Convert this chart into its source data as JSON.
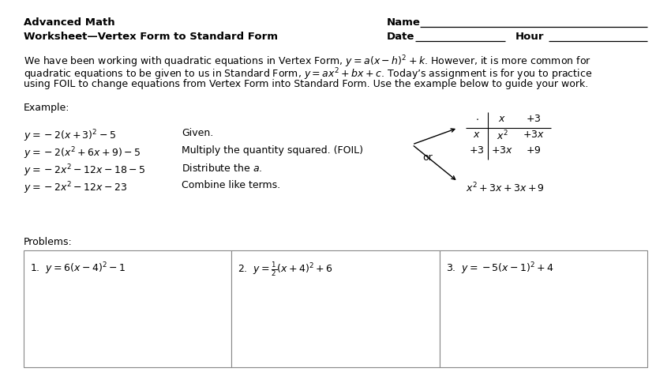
{
  "bg_color": "#ffffff",
  "text_color": "#000000",
  "title_line1": "Advanced Math",
  "title_line2": "Worksheet—Vertex Form to Standard Form",
  "name_label": "Name",
  "date_label": "Date",
  "hour_label": "Hour",
  "para_line1": "We have been working with quadratic equations in Vertex Form, $y = a(x - h)^2 + k$. However, it is more common for",
  "para_line2": "quadratic equations to be given to us in Standard Form, $y = ax^2 + bx + c$. Today’s assignment is for you to practice",
  "para_line3": "using FOIL to change equations from Vertex Form into Standard Form. Use the example below to guide your work.",
  "example_label": "Example:",
  "eq1": "$y = -2(x + 3)^2 - 5$",
  "eq2": "$y = -2(x^2 + 6x + 9) - 5$",
  "eq3": "$y = -2x^2 - 12x - 18 - 5$",
  "eq4": "$y = -2x^2 - 12x - 23$",
  "step1": "Given.",
  "step2": "Multiply the quantity squared. (FOIL)",
  "step3": "Distribute the $a$.",
  "step4": "Combine like terms.",
  "foil_dot": "$\\cdot$",
  "foil_x_top": "$x$",
  "foil_p3_top": "$+3$",
  "foil_x_left": "$x$",
  "foil_p3_left": "$+3$",
  "foil_x2": "$x^2$",
  "foil_3x_tr": "$+3x$",
  "foil_3x_bl": "$+3x$",
  "foil_9": "$+9$",
  "or_text": "or",
  "foil_result": "$x^2 + 3x + 3x + 9$",
  "problems_label": "Problems:",
  "prob1": "1.  $y = 6(x-4)^2 - 1$",
  "prob2": "2.  $y = \\frac{1}{2}(x + 4)^2 + 6$",
  "prob3": "3.  $y = -5(x - 1)^2 + 4$",
  "font_size_header": 9.5,
  "font_size_body": 9.0,
  "font_size_eq": 9.0
}
